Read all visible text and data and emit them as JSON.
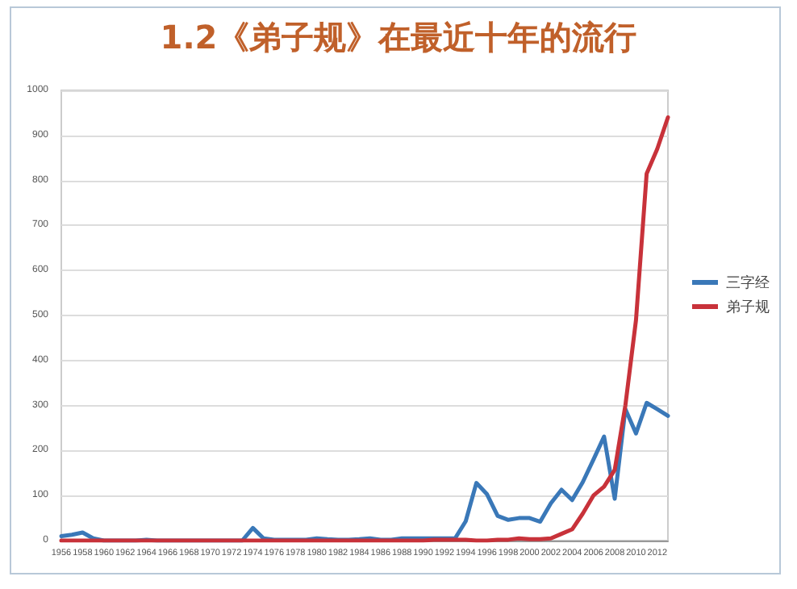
{
  "chart_data": {
    "type": "line",
    "title": "1.2《弟子规》在最近十年的流行",
    "categories": [
      "1956",
      null,
      "1958",
      null,
      "1960",
      null,
      "1962",
      null,
      "1964",
      null,
      "1966",
      null,
      "1968",
      null,
      "1970",
      null,
      "1972",
      null,
      "1974",
      null,
      "1976",
      null,
      "1978",
      null,
      "1980",
      null,
      "1982",
      null,
      "1984",
      null,
      "1986",
      null,
      "1988",
      null,
      "1990",
      null,
      "1992",
      null,
      "1994",
      null,
      "1996",
      null,
      "1998",
      null,
      "2000",
      null,
      "2002",
      null,
      "2004",
      null,
      "2006",
      null,
      "2008",
      null,
      "2010",
      null,
      "2012",
      null
    ],
    "series": [
      {
        "name": "三字经",
        "color": "#3a78b8",
        "values": [
          10,
          13,
          18,
          5,
          0,
          0,
          0,
          0,
          2,
          0,
          0,
          0,
          0,
          0,
          0,
          0,
          0,
          0,
          28,
          5,
          2,
          2,
          2,
          2,
          5,
          3,
          2,
          2,
          3,
          5,
          2,
          2,
          5,
          5,
          5,
          5,
          5,
          5,
          43,
          128,
          103,
          55,
          46,
          50,
          50,
          42,
          83,
          113,
          90,
          130,
          180,
          231,
          93,
          292,
          238,
          306,
          292,
          277
        ]
      },
      {
        "name": "弟子规",
        "color": "#c8323a",
        "values": [
          0,
          0,
          0,
          0,
          0,
          0,
          0,
          0,
          0,
          0,
          0,
          0,
          0,
          0,
          0,
          0,
          0,
          0,
          0,
          0,
          0,
          0,
          0,
          0,
          0,
          0,
          0,
          0,
          0,
          0,
          0,
          0,
          0,
          0,
          0,
          2,
          2,
          2,
          2,
          0,
          0,
          2,
          2,
          5,
          3,
          3,
          5,
          15,
          25,
          60,
          100,
          120,
          157,
          300,
          490,
          815,
          870,
          940
        ]
      }
    ],
    "ylim": [
      0,
      1000
    ],
    "yticks": [
      0,
      100,
      200,
      300,
      400,
      500,
      600,
      700,
      800,
      900,
      1000
    ],
    "grid": "y",
    "legend": "right",
    "marker": "none",
    "line_style": "solid"
  }
}
